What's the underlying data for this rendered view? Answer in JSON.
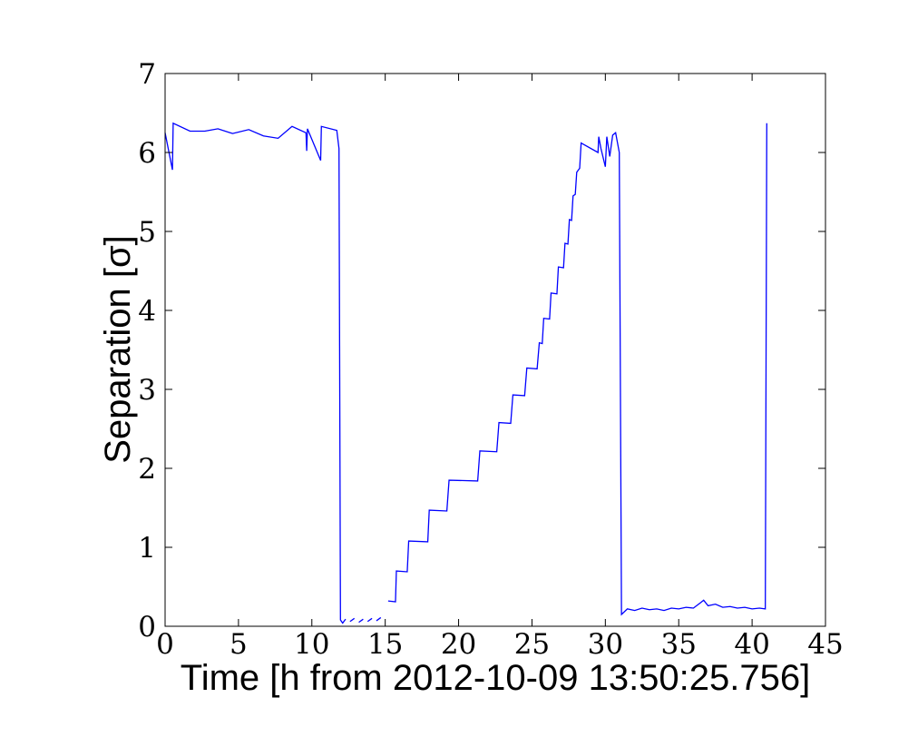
{
  "chart_data": {
    "type": "line",
    "x_label": "Time [h from 2012-10-09 13:50:25.756]",
    "y_label": "Separation [σ]",
    "xlim": [
      0,
      45
    ],
    "ylim": [
      0,
      7
    ],
    "xticks": [
      0,
      5,
      10,
      15,
      20,
      25,
      30,
      35,
      40,
      45
    ],
    "yticks": [
      0,
      1,
      2,
      3,
      4,
      5,
      6,
      7
    ],
    "grid": false,
    "series": [
      {
        "color": "#0000ff",
        "x": [
          0,
          0.5,
          0.55,
          1.7,
          2.7,
          3.6,
          4.6,
          5.7,
          6.7,
          7.7,
          8.65,
          9.6,
          9.65,
          9.7,
          10.6,
          10.65,
          11.7,
          11.85,
          11.95,
          12.1,
          12.3,
          12.45,
          12.6,
          12.9,
          13.05,
          13.2,
          13.5,
          13.65,
          13.8,
          14.1,
          14.25,
          14.4,
          14.7,
          14.95,
          15.2,
          15.7,
          15.76,
          16.5,
          16.6,
          17.9,
          18.0,
          19.2,
          19.35,
          21.3,
          21.45,
          22.6,
          22.75,
          23.55,
          23.7,
          24.5,
          24.65,
          25.35,
          25.5,
          25.7,
          25.8,
          26.2,
          26.3,
          26.7,
          26.8,
          27.15,
          27.25,
          27.45,
          27.55,
          27.7,
          27.8,
          27.95,
          28.05,
          28.25,
          28.35,
          29.5,
          29.55,
          29.7,
          30.0,
          30.1,
          30.3,
          30.5,
          30.7,
          30.95,
          31.1,
          31.5,
          32,
          32.5,
          33,
          33.5,
          34,
          34.5,
          35,
          35.5,
          36,
          36.5,
          36.7,
          37,
          37.5,
          38,
          38.5,
          39,
          39.5,
          40,
          40.5,
          40.9,
          41.0
        ],
        "values": [
          6.25,
          5.78,
          6.37,
          6.27,
          6.27,
          6.3,
          6.24,
          6.29,
          6.21,
          6.18,
          6.33,
          6.25,
          6.02,
          6.3,
          5.9,
          6.33,
          6.28,
          6.05,
          0.08,
          0.04,
          0.09,
          null,
          0.06,
          0.1,
          null,
          0.05,
          0.09,
          null,
          0.06,
          0.1,
          null,
          0.07,
          0.11,
          null,
          0.32,
          0.31,
          0.7,
          0.69,
          1.08,
          1.07,
          1.47,
          1.46,
          1.85,
          1.84,
          2.22,
          2.21,
          2.58,
          2.57,
          2.93,
          2.92,
          3.27,
          3.26,
          3.59,
          3.58,
          3.9,
          3.89,
          4.22,
          4.21,
          4.55,
          4.54,
          4.85,
          4.84,
          5.15,
          5.14,
          5.45,
          5.47,
          5.75,
          5.8,
          6.12,
          6.0,
          6.2,
          6.05,
          5.82,
          6.2,
          5.95,
          6.22,
          6.25,
          6.0,
          0.15,
          0.22,
          0.2,
          0.23,
          0.21,
          0.22,
          0.2,
          0.23,
          0.22,
          0.24,
          0.23,
          0.3,
          0.33,
          0.26,
          0.28,
          0.24,
          0.25,
          0.23,
          0.24,
          0.22,
          0.23,
          0.22,
          6.37
        ]
      }
    ]
  }
}
